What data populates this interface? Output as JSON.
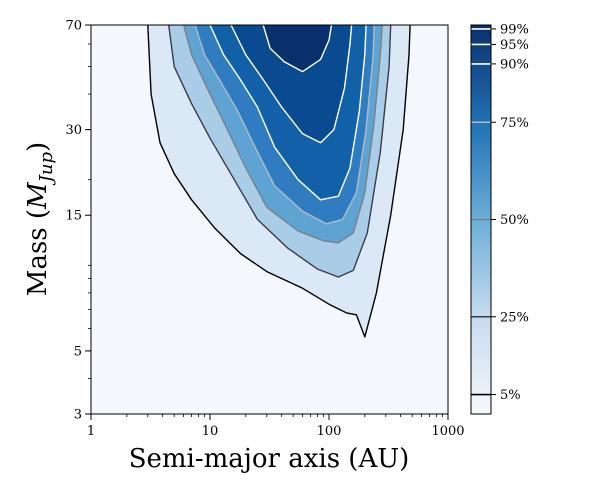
{
  "chart_data": {
    "type": "heatmap",
    "title": "",
    "xlabel": "Semi-major axis (AU)",
    "ylabel_main": "Mass (",
    "ylabel_sym": "M",
    "ylabel_sub": "Jup",
    "ylabel_close": ")",
    "x_scale": "log",
    "y_scale": "log",
    "xlim": [
      1,
      1000
    ],
    "ylim": [
      3,
      70
    ],
    "x_ticks": [
      {
        "value": 1,
        "label": "1"
      },
      {
        "value": 10,
        "label": "10"
      },
      {
        "value": 100,
        "label": "100"
      },
      {
        "value": 1000,
        "label": "1000"
      }
    ],
    "y_ticks": [
      {
        "value": 3,
        "label": "3"
      },
      {
        "value": 5,
        "label": "5"
      },
      {
        "value": 15,
        "label": "15"
      },
      {
        "value": 30,
        "label": "30"
      },
      {
        "value": 70,
        "label": "70"
      }
    ],
    "colorbar_levels": [
      {
        "value": 5,
        "label": "5%",
        "line_color": "#000000"
      },
      {
        "value": 25,
        "label": "25%",
        "line_color": "#3a3a4a"
      },
      {
        "value": 50,
        "label": "50%",
        "line_color": "#7a7f8a"
      },
      {
        "value": 75,
        "label": "75%",
        "line_color": "#b0bac8"
      },
      {
        "value": 90,
        "label": "90%",
        "line_color": "#ffffff"
      },
      {
        "value": 95,
        "label": "95%",
        "line_color": "#ffffff"
      },
      {
        "value": 99,
        "label": "99%",
        "line_color": "#ffffff"
      }
    ],
    "contours": [
      {
        "level": 5,
        "color": "#000000",
        "points": [
          [
            3.0,
            70
          ],
          [
            3.2,
            40
          ],
          [
            3.8,
            27
          ],
          [
            5,
            21
          ],
          [
            7,
            17
          ],
          [
            11,
            13.5
          ],
          [
            18,
            11
          ],
          [
            30,
            9.5
          ],
          [
            60,
            8.3
          ],
          [
            100,
            7.3
          ],
          [
            140,
            6.8
          ],
          [
            170,
            6.7
          ],
          [
            200,
            5.6
          ],
          [
            250,
            8
          ],
          [
            330,
            15
          ],
          [
            420,
            30
          ],
          [
            470,
            55
          ],
          [
            480,
            70
          ]
        ]
      },
      {
        "level": 25,
        "color": "#3a3a4a",
        "points": [
          [
            4.5,
            70
          ],
          [
            5,
            50
          ],
          [
            7,
            37
          ],
          [
            10,
            28
          ],
          [
            16,
            20
          ],
          [
            25,
            14.5
          ],
          [
            45,
            11.5
          ],
          [
            80,
            9.7
          ],
          [
            120,
            9.1
          ],
          [
            160,
            9.6
          ],
          [
            210,
            13
          ],
          [
            270,
            25
          ],
          [
            320,
            50
          ],
          [
            330,
            70
          ]
        ]
      },
      {
        "level": 50,
        "color": "#7a7f8a",
        "points": [
          [
            6,
            70
          ],
          [
            7,
            55
          ],
          [
            10,
            40
          ],
          [
            14,
            30
          ],
          [
            20,
            22
          ],
          [
            30,
            16
          ],
          [
            55,
            13.2
          ],
          [
            90,
            12.2
          ],
          [
            120,
            12
          ],
          [
            160,
            13
          ],
          [
            200,
            18
          ],
          [
            240,
            32
          ],
          [
            270,
            55
          ],
          [
            280,
            70
          ]
        ]
      },
      {
        "level": 75,
        "color": "#b0bac8",
        "points": [
          [
            7.5,
            70
          ],
          [
            9,
            55
          ],
          [
            12,
            45
          ],
          [
            17,
            35
          ],
          [
            24,
            26
          ],
          [
            35,
            19
          ],
          [
            60,
            15.5
          ],
          [
            95,
            14
          ],
          [
            130,
            14.5
          ],
          [
            170,
            18
          ],
          [
            205,
            30
          ],
          [
            235,
            55
          ],
          [
            240,
            70
          ]
        ]
      },
      {
        "level": 90,
        "color": "#ffffff",
        "points": [
          [
            10,
            70
          ],
          [
            13,
            55
          ],
          [
            18,
            45
          ],
          [
            25,
            36
          ],
          [
            35,
            26
          ],
          [
            55,
            20
          ],
          [
            85,
            17
          ],
          [
            120,
            17.5
          ],
          [
            150,
            22
          ],
          [
            180,
            35
          ],
          [
            200,
            55
          ],
          [
            205,
            70
          ]
        ]
      },
      {
        "level": 95,
        "color": "#ffffff",
        "points": [
          [
            15,
            70
          ],
          [
            20,
            55
          ],
          [
            28,
            45
          ],
          [
            40,
            36
          ],
          [
            60,
            29
          ],
          [
            85,
            27
          ],
          [
            110,
            30
          ],
          [
            135,
            42
          ],
          [
            150,
            60
          ],
          [
            155,
            70
          ]
        ]
      },
      {
        "level": 99,
        "color": "#ffffff",
        "points": [
          [
            28,
            70
          ],
          [
            32,
            58
          ],
          [
            42,
            52
          ],
          [
            60,
            48
          ],
          [
            85,
            53
          ],
          [
            100,
            62
          ],
          [
            105,
            70
          ]
        ]
      }
    ]
  }
}
